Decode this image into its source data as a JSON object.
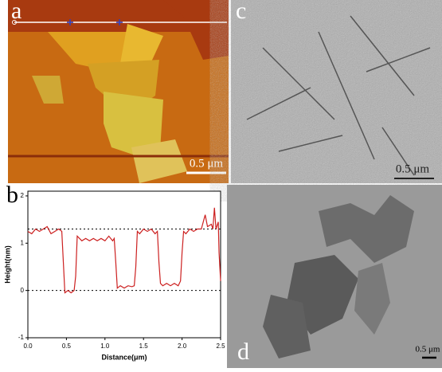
{
  "panels": [
    {
      "label": "a",
      "scale_bar": "0.5 μm"
    },
    {
      "label": "b"
    },
    {
      "label": "c",
      "scale_bar": "0.5 μm"
    },
    {
      "label": "d",
      "scale_bar": "0.5 μm"
    }
  ],
  "chart_data": {
    "type": "line",
    "xlabel": "Distance(μm)",
    "ylabel": "Height(nm)",
    "x": [
      0.0,
      0.05,
      0.1,
      0.15,
      0.2,
      0.25,
      0.3,
      0.35,
      0.4,
      0.44,
      0.46,
      0.48,
      0.52,
      0.56,
      0.6,
      0.62,
      0.64,
      0.7,
      0.75,
      0.8,
      0.85,
      0.9,
      0.95,
      1.0,
      1.05,
      1.1,
      1.12,
      1.14,
      1.16,
      1.2,
      1.25,
      1.3,
      1.35,
      1.38,
      1.4,
      1.42,
      1.45,
      1.5,
      1.55,
      1.6,
      1.65,
      1.68,
      1.7,
      1.72,
      1.75,
      1.8,
      1.85,
      1.9,
      1.95,
      1.98,
      2.0,
      2.02,
      2.05,
      2.1,
      2.15,
      2.2,
      2.25,
      2.3,
      2.33,
      2.38,
      2.4,
      2.42,
      2.44,
      2.47,
      2.48,
      2.5
    ],
    "values": [
      1.25,
      1.2,
      1.3,
      1.25,
      1.3,
      1.35,
      1.2,
      1.25,
      1.3,
      1.25,
      0.6,
      -0.05,
      0.0,
      -0.05,
      0.0,
      0.3,
      1.15,
      1.05,
      1.1,
      1.05,
      1.1,
      1.05,
      1.1,
      1.05,
      1.15,
      1.05,
      1.1,
      0.6,
      0.05,
      0.1,
      0.05,
      0.1,
      0.08,
      0.1,
      0.5,
      1.25,
      1.2,
      1.3,
      1.25,
      1.3,
      1.2,
      1.25,
      0.6,
      0.15,
      0.1,
      0.15,
      0.1,
      0.15,
      0.1,
      0.2,
      0.8,
      1.25,
      1.2,
      1.3,
      1.25,
      1.3,
      1.3,
      1.6,
      1.35,
      1.4,
      1.3,
      1.75,
      1.3,
      1.45,
      0.8,
      0.2
    ],
    "color": "#cc2020",
    "reference_lines": [
      1.3,
      0
    ],
    "xlim": [
      0,
      2.5
    ],
    "ylim": [
      -1,
      2.1
    ],
    "xticks": [
      {
        "value": 0,
        "label": "0.0"
      },
      0.5,
      {
        "value": 1,
        "label": "1.0"
      },
      1.5,
      {
        "value": 2,
        "label": "2.0"
      },
      2.5
    ],
    "yticks": [
      -1,
      0,
      1,
      2
    ]
  }
}
